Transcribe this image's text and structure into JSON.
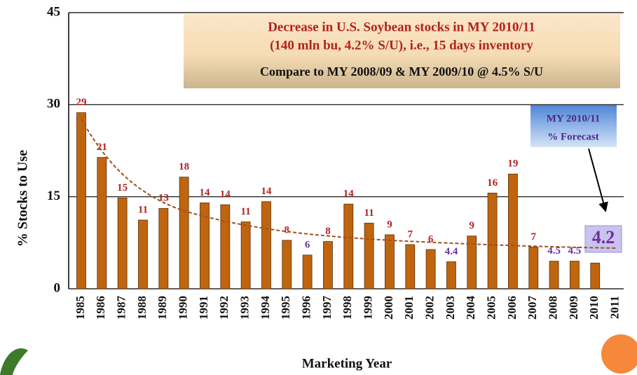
{
  "chart_data": {
    "type": "bar",
    "title_lines": [
      "Decrease in U.S. Soybean stocks in MY 2010/11",
      "(140 mln bu, 4.2% S/U), i.e., 15 days inventory"
    ],
    "subtitle": "Compare to MY 2008/09 & MY 2009/10 @ 4.5% S/U",
    "annotation_lines": [
      "MY 2010/11",
      "% Forecast"
    ],
    "x_label": "Marketing Year",
    "y_label": "% Stocks to Use",
    "categories": [
      "1985",
      "1986",
      "1987",
      "1988",
      "1989",
      "1990",
      "1991",
      "1992",
      "1993",
      "1994",
      "1995",
      "1996",
      "1997",
      "1998",
      "1999",
      "2000",
      "2001",
      "2002",
      "2003",
      "2004",
      "2005",
      "2006",
      "2007",
      "2008",
      "2009",
      "2010",
      "2011"
    ],
    "values": [
      28.7,
      21.4,
      14.8,
      11.2,
      13.1,
      18.2,
      14.0,
      13.7,
      10.9,
      14.2,
      7.9,
      5.5,
      7.7,
      13.8,
      10.7,
      8.8,
      7.2,
      6.4,
      4.4,
      8.6,
      15.6,
      18.7,
      6.8,
      4.5,
      4.5,
      4.2,
      null
    ],
    "value_labels": [
      "29",
      "21",
      "15",
      "11",
      "13",
      "18",
      "14",
      "14",
      "11",
      "14",
      "8",
      "6",
      "8",
      "14",
      "11",
      "9",
      "7",
      "6",
      "4.4",
      "9",
      "16",
      "19",
      "7",
      "4.5",
      "4.5",
      "4.2",
      null
    ],
    "value_label_colors": [
      "#b22222",
      "#b22222",
      "#b22222",
      "#b22222",
      "#b22222",
      "#b22222",
      "#b22222",
      "#b22222",
      "#b22222",
      "#b22222",
      "#b22222",
      "#7030a0",
      "#b22222",
      "#b22222",
      "#b22222",
      "#b22222",
      "#b22222",
      "#b22222",
      "#7030a0",
      "#b22222",
      "#b22222",
      "#b22222",
      "#b22222",
      "#7030a0",
      "#7030a0",
      "#7030a0",
      null
    ],
    "color": "#c0650f",
    "ylim": [
      0,
      45
    ],
    "yticks": [
      0,
      15,
      30,
      45
    ],
    "grid": true
  }
}
